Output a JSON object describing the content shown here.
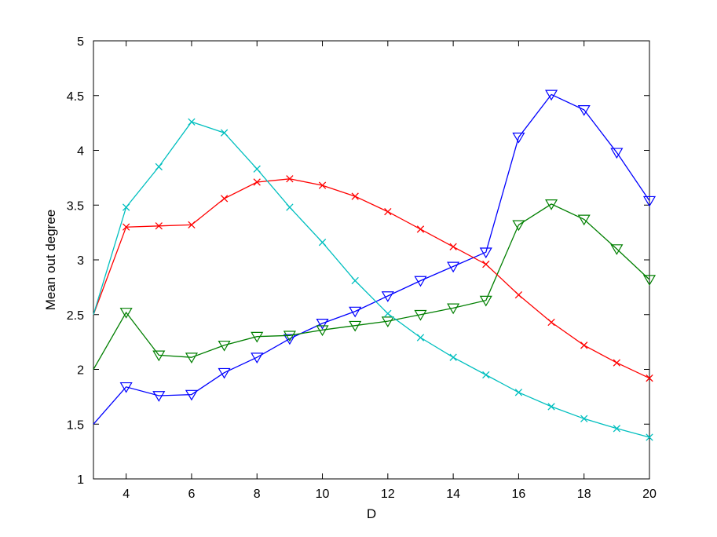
{
  "chart_data": {
    "type": "line",
    "title": "",
    "xlabel": "D",
    "ylabel": "Mean out degree",
    "xlim": [
      3,
      20
    ],
    "ylim": [
      1,
      5
    ],
    "xticks": [
      4,
      6,
      8,
      10,
      12,
      14,
      16,
      18,
      20
    ],
    "yticks": [
      1,
      1.5,
      2,
      2.5,
      3,
      3.5,
      4,
      4.5,
      5
    ],
    "grid": false,
    "legend": "none",
    "x": [
      3,
      4,
      5,
      6,
      7,
      8,
      9,
      10,
      11,
      12,
      13,
      14,
      15,
      16,
      17,
      18,
      19,
      20
    ],
    "series": [
      {
        "color": "#0000ff",
        "marker": "triangle-down",
        "values": [
          1.5,
          1.84,
          1.76,
          1.77,
          1.97,
          2.11,
          2.28,
          2.42,
          2.53,
          2.67,
          2.81,
          2.94,
          3.07,
          4.12,
          4.51,
          4.37,
          3.98,
          3.54
        ]
      },
      {
        "color": "#007f00",
        "marker": "triangle-down",
        "values": [
          2.0,
          2.52,
          2.13,
          2.11,
          2.22,
          2.3,
          2.31,
          2.36,
          2.4,
          2.44,
          2.5,
          2.56,
          2.63,
          3.32,
          3.51,
          3.37,
          3.1,
          2.82
        ]
      },
      {
        "color": "#ff0000",
        "marker": "x",
        "values": [
          2.5,
          3.3,
          3.31,
          3.32,
          3.56,
          3.71,
          3.74,
          3.68,
          3.58,
          3.44,
          3.28,
          3.12,
          2.96,
          2.68,
          2.43,
          2.22,
          2.06,
          1.92
        ]
      },
      {
        "color": "#00bfbf",
        "marker": "x",
        "values": [
          2.5,
          3.48,
          3.85,
          4.26,
          4.16,
          3.83,
          3.48,
          3.16,
          2.81,
          2.51,
          2.29,
          2.11,
          1.95,
          1.79,
          1.66,
          1.55,
          1.46,
          1.38
        ]
      }
    ]
  }
}
